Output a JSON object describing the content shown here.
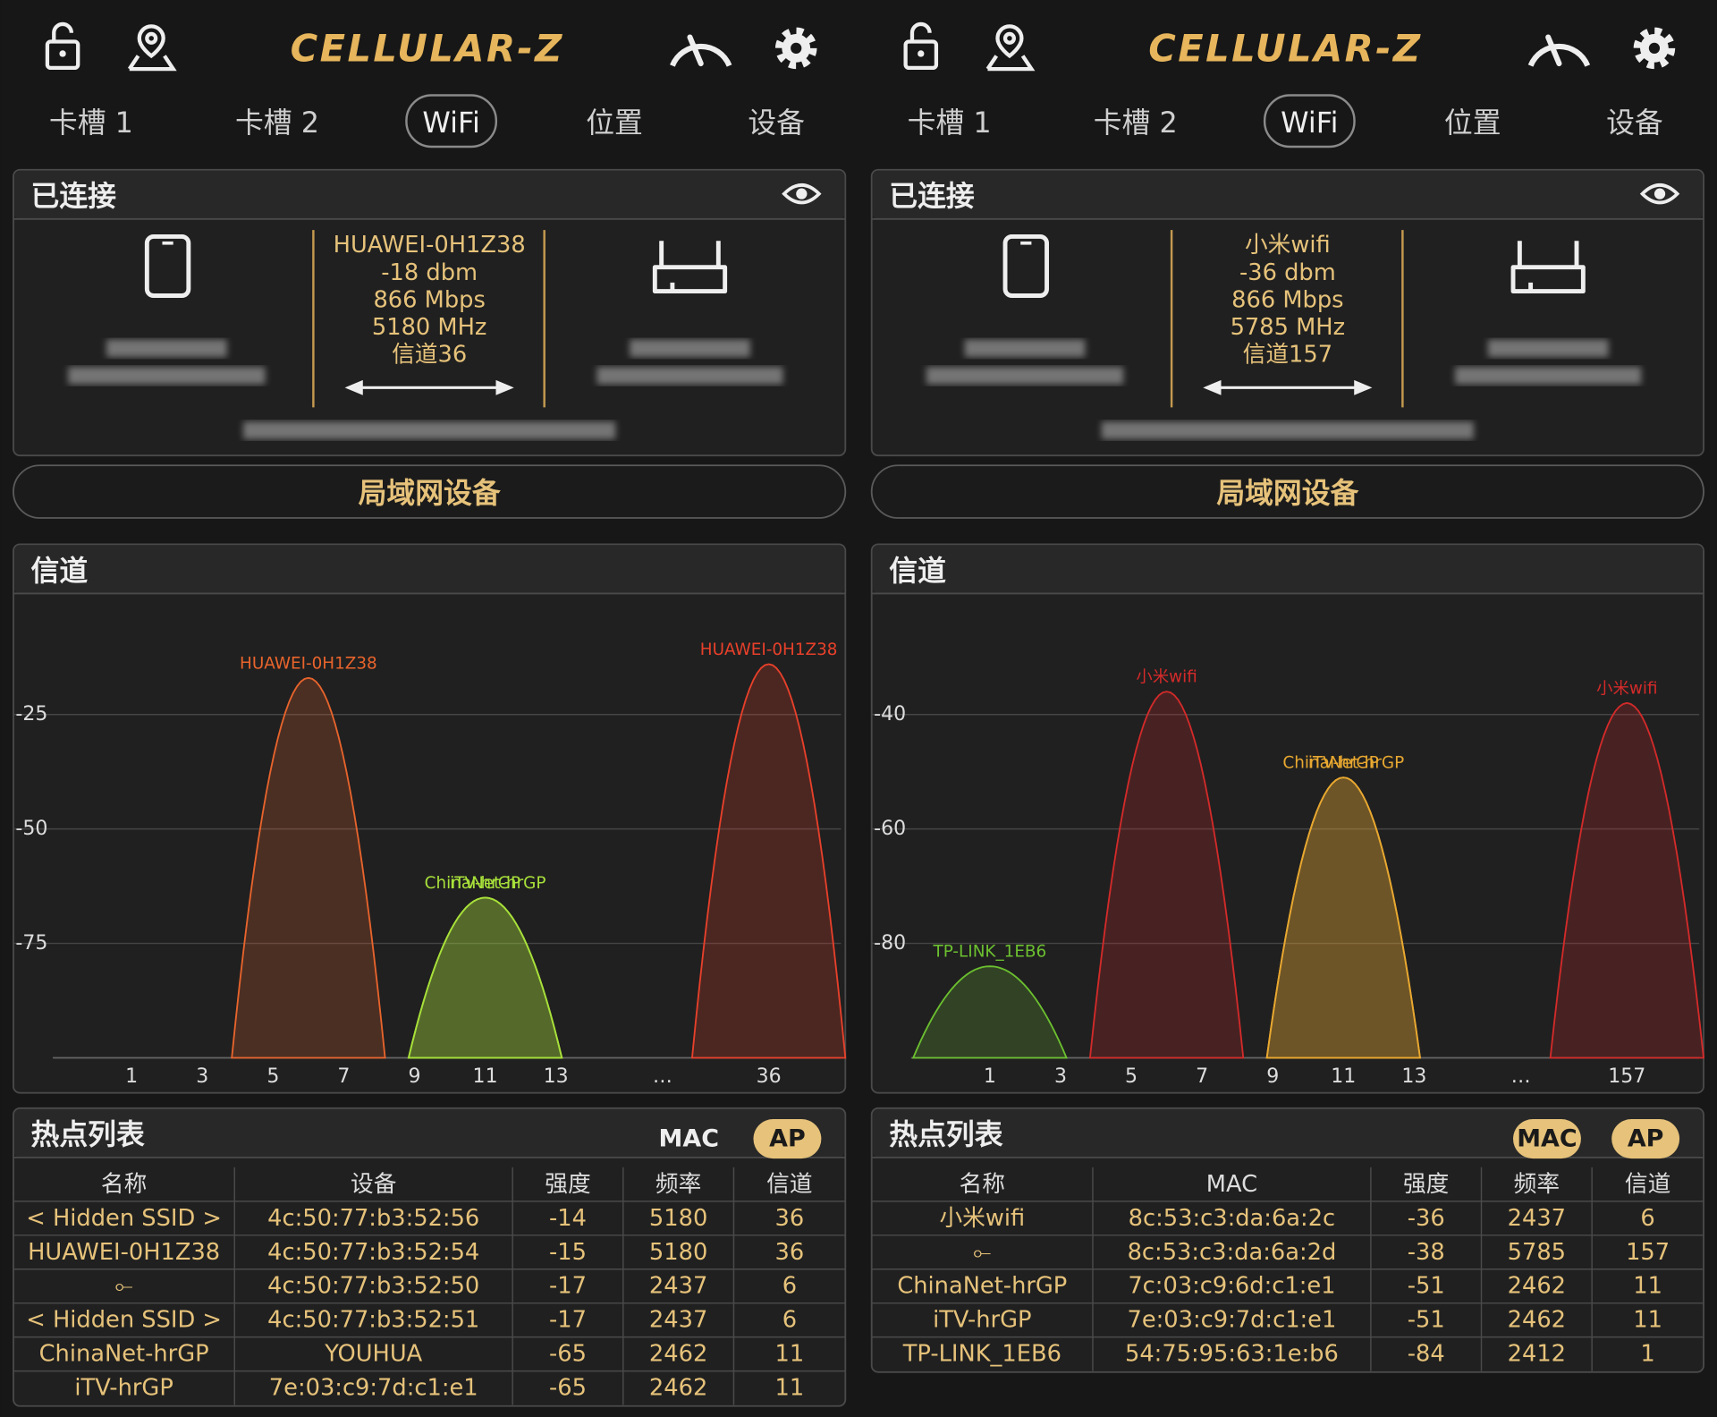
{
  "panels": [
    {
      "header": {
        "title": "CELLULAR-Z"
      },
      "tabs": [
        "卡槽 1",
        "卡槽 2",
        "WiFi",
        "位置",
        "设备"
      ],
      "active_tab": 2,
      "connected": {
        "title": "已连接",
        "ssid": "HUAWEI-0H1Z38",
        "signal": "-18 dbm",
        "speed": "866 Mbps",
        "frequency": "5180 MHz",
        "channel": "信道36"
      },
      "lan_button": "局域网设备",
      "chart_data": {
        "type": "channel",
        "title": "信道",
        "categories": [
          "1",
          "3",
          "5",
          "7",
          "9",
          "11",
          "13",
          "…",
          "36"
        ],
        "ylim": [
          -100,
          0
        ],
        "yticks": [
          -25,
          -50,
          -75
        ],
        "grid": true,
        "series": [
          {
            "name": "HUAWEI-0H1Z38",
            "color": "#e8642c",
            "channel": 6,
            "value": -17
          },
          {
            "name": "ChinaNet-hrGP",
            "color": "#a8e03a",
            "channel": 11,
            "value": -65
          },
          {
            "name": "iTV-hrGP",
            "color": "#a8e03a",
            "channel": 11,
            "value": -65
          },
          {
            "name": "HUAWEI-0H1Z38",
            "color": "#e8402a",
            "channel": 36,
            "value": -14
          }
        ]
      },
      "hotspots": {
        "title": "热点列表",
        "toggles": [
          {
            "label": "MAC",
            "active": false
          },
          {
            "label": "AP",
            "active": true
          }
        ],
        "columns": [
          "名称",
          "设备",
          "强度",
          "频率",
          "信道"
        ],
        "rows": [
          [
            "< Hidden SSID >",
            "4c:50:77:b3:52:56",
            -14,
            5180,
            36
          ],
          [
            "HUAWEI-0H1Z38",
            "4c:50:77:b3:52:54",
            -15,
            5180,
            36
          ],
          [
            "⟜",
            "4c:50:77:b3:52:50",
            -17,
            2437,
            6
          ],
          [
            "< Hidden SSID >",
            "4c:50:77:b3:52:51",
            -17,
            2437,
            6
          ],
          [
            "ChinaNet-hrGP",
            "YOUHUA",
            -65,
            2462,
            11
          ],
          [
            "iTV-hrGP",
            "7e:03:c9:7d:c1:e1",
            -65,
            2462,
            11
          ]
        ]
      }
    },
    {
      "header": {
        "title": "CELLULAR-Z"
      },
      "tabs": [
        "卡槽 1",
        "卡槽 2",
        "WiFi",
        "位置",
        "设备"
      ],
      "active_tab": 2,
      "connected": {
        "title": "已连接",
        "ssid": "小米wifi",
        "signal": "-36 dbm",
        "speed": "866 Mbps",
        "frequency": "5785 MHz",
        "channel": "信道157"
      },
      "lan_button": "局域网设备",
      "chart_data": {
        "type": "channel",
        "title": "信道",
        "categories": [
          "1",
          "3",
          "5",
          "7",
          "9",
          "11",
          "13",
          "…",
          "157"
        ],
        "ylim": [
          -100,
          -20
        ],
        "yticks": [
          -40,
          -60,
          -80
        ],
        "grid": true,
        "series": [
          {
            "name": "TP-LINK_1EB6",
            "color": "#6cc030",
            "channel": 1,
            "value": -84
          },
          {
            "name": "小米wifi",
            "color": "#d42a2a",
            "channel": 6,
            "value": -36
          },
          {
            "name": "ChinaNet-hrGP",
            "color": "#e8a830",
            "channel": 11,
            "value": -51
          },
          {
            "name": "iTV-hrGP",
            "color": "#e8a830",
            "channel": 11,
            "value": -51
          },
          {
            "name": "小米wifi",
            "color": "#d42a2a",
            "channel": 157,
            "value": -38
          }
        ]
      },
      "hotspots": {
        "title": "热点列表",
        "toggles": [
          {
            "label": "MAC",
            "active": true
          },
          {
            "label": "AP",
            "active": true
          }
        ],
        "columns": [
          "名称",
          "MAC",
          "强度",
          "频率",
          "信道"
        ],
        "rows": [
          [
            "小米wifi",
            "8c:53:c3:da:6a:2c",
            -36,
            2437,
            6
          ],
          [
            "⟜",
            "8c:53:c3:da:6a:2d",
            -38,
            5785,
            157
          ],
          [
            "ChinaNet-hrGP",
            "7c:03:c9:6d:c1:e1",
            -51,
            2462,
            11
          ],
          [
            "iTV-hrGP",
            "7e:03:c9:7d:c1:e1",
            -51,
            2462,
            11
          ],
          [
            "TP-LINK_1EB6",
            "54:75:95:63:1e:b6",
            -84,
            2412,
            1
          ]
        ]
      }
    }
  ]
}
